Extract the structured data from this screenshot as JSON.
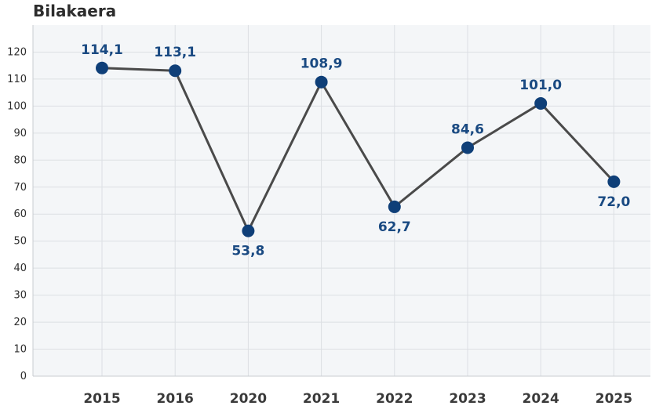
{
  "chart_data": {
    "type": "line",
    "title": "Bilakaera",
    "categories": [
      "2015",
      "2016",
      "2020",
      "2021",
      "2022",
      "2023",
      "2024",
      "2025"
    ],
    "values": [
      114.1,
      113.1,
      53.8,
      108.9,
      62.7,
      84.6,
      101.0,
      72.0
    ],
    "value_labels": [
      "114,1",
      "113,1",
      "53,8",
      "108,9",
      "62,7",
      "84,6",
      "101,0",
      "72,0"
    ],
    "label_position": [
      "above",
      "above",
      "below",
      "above",
      "below",
      "above",
      "above",
      "below"
    ],
    "y_ticks": [
      "0",
      "10",
      "20",
      "30",
      "40",
      "50",
      "60",
      "70",
      "80",
      "90",
      "100",
      "110",
      "120"
    ],
    "ylim": [
      0,
      130
    ],
    "grid": true,
    "line_color": "#4a4a4a",
    "marker_color": "#0f3f78",
    "label_color": "#1a4a82",
    "plot_background": "#f4f6f8",
    "grid_color": "#dcdfe3"
  }
}
